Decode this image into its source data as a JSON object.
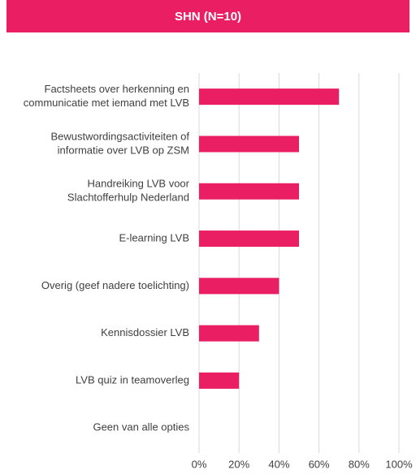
{
  "chart_data": {
    "type": "hbar",
    "title": "SHN (N=10)",
    "categories": [
      [
        "Factsheets over herkenning en",
        "communicatie met iemand met LVB"
      ],
      [
        "Bewustwordingsactiviteiten of",
        "informatie over LVB op ZSM"
      ],
      [
        "Handreiking LVB voor",
        "Slachtofferhulp Nederland"
      ],
      [
        "E-learning LVB"
      ],
      [
        "Overig (geef nadere toelichting)"
      ],
      [
        "Kennisdossier LVB"
      ],
      [
        "LVB quiz in teamoverleg"
      ],
      [
        "Geen van alle opties"
      ]
    ],
    "values": [
      70,
      50,
      50,
      50,
      40,
      30,
      20,
      0
    ],
    "color": "#e91e63",
    "xlim": [
      0,
      100
    ],
    "xticks": [
      {
        "value": 0,
        "label": "0%"
      },
      {
        "value": 20,
        "label": "20%"
      },
      {
        "value": 40,
        "label": "40%"
      },
      {
        "value": 60,
        "label": "60%"
      },
      {
        "value": 80,
        "label": "80%"
      },
      {
        "value": 100,
        "label": "100%"
      }
    ],
    "grid": true
  }
}
